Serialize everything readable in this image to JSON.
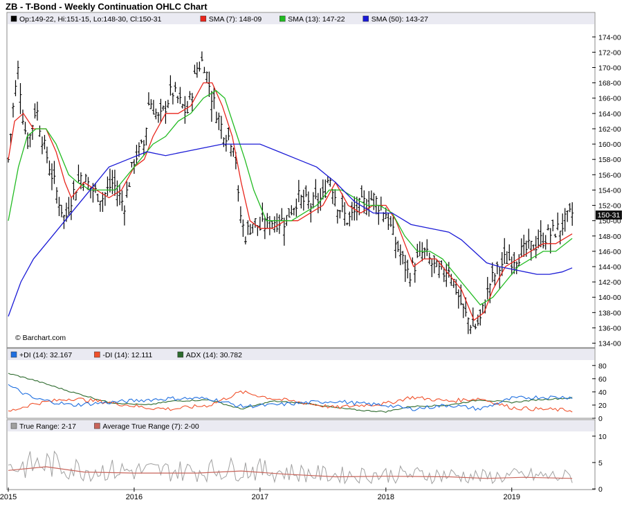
{
  "title": "ZB - T-Bond - Weekly Continuation OHLC Chart",
  "watermark": "© Barchart.com",
  "price_panel": {
    "legend": [
      {
        "key": "ohlc",
        "text": "Op:149-22, Hi:151-15, Lo:148-30, Cl:150-31",
        "color": "#000000"
      },
      {
        "key": "sma7",
        "text": "SMA (7): 148-09",
        "color": "#e8251c"
      },
      {
        "key": "sma13",
        "text": "SMA (13): 147-22",
        "color": "#22bb22"
      },
      {
        "key": "sma50",
        "text": "SMA (50): 143-27",
        "color": "#1a1ad6"
      }
    ],
    "y_ticks": [
      "134-00",
      "136-00",
      "138-00",
      "140-00",
      "142-00",
      "144-00",
      "146-00",
      "148-00",
      "150-00",
      "152-00",
      "154-00",
      "156-00",
      "158-00",
      "160-00",
      "162-00",
      "164-00",
      "166-00",
      "168-00",
      "170-00",
      "172-00",
      "174-00"
    ],
    "last_label": "150-31"
  },
  "dmi_panel": {
    "legend": [
      {
        "key": "pdi",
        "text": "+DI (14): 32.167",
        "color": "#1f6fe0"
      },
      {
        "key": "mdi",
        "text": "-DI (14): 12.111",
        "color": "#f0502a"
      },
      {
        "key": "adx",
        "text": "ADX (14): 30.782",
        "color": "#2d6a2d"
      }
    ],
    "y_ticks": [
      "0",
      "20",
      "40",
      "60",
      "80"
    ]
  },
  "tr_panel": {
    "legend": [
      {
        "key": "tr",
        "text": "True Range: 2-17",
        "color": "#a0a0a0"
      },
      {
        "key": "atr",
        "text": "Average True Range (7): 2-00",
        "color": "#c8645a"
      }
    ],
    "y_ticks": [
      "0",
      "5",
      "10"
    ]
  },
  "x_ticks": [
    "2015",
    "2016",
    "2017",
    "2018",
    "2019"
  ],
  "chart_data": {
    "type": "line",
    "title": "ZB - T-Bond - Weekly Continuation OHLC Chart",
    "xlabel": "",
    "ylabel": "",
    "ylim": [
      134,
      175
    ],
    "x_range": [
      "2015-01",
      "2019-07"
    ],
    "series": [
      {
        "name": "OHLC close",
        "points": [
          [
            2015.0,
            158
          ],
          [
            2015.04,
            165
          ],
          [
            2015.08,
            170
          ],
          [
            2015.12,
            163
          ],
          [
            2015.16,
            160
          ],
          [
            2015.22,
            165
          ],
          [
            2015.28,
            160
          ],
          [
            2015.33,
            157
          ],
          [
            2015.38,
            154
          ],
          [
            2015.45,
            150
          ],
          [
            2015.5,
            153
          ],
          [
            2015.58,
            156
          ],
          [
            2015.67,
            154
          ],
          [
            2015.75,
            153
          ],
          [
            2015.83,
            155
          ],
          [
            2015.92,
            152
          ],
          [
            2016.0,
            158
          ],
          [
            2016.08,
            160
          ],
          [
            2016.12,
            166
          ],
          [
            2016.2,
            163
          ],
          [
            2016.3,
            167
          ],
          [
            2016.42,
            164
          ],
          [
            2016.5,
            170
          ],
          [
            2016.55,
            171
          ],
          [
            2016.62,
            166
          ],
          [
            2016.7,
            162
          ],
          [
            2016.8,
            160
          ],
          [
            2016.83,
            152
          ],
          [
            2016.88,
            148
          ],
          [
            2016.95,
            150
          ],
          [
            2017.0,
            149
          ],
          [
            2017.1,
            150
          ],
          [
            2017.2,
            150
          ],
          [
            2017.3,
            153
          ],
          [
            2017.4,
            152
          ],
          [
            2017.5,
            153
          ],
          [
            2017.55,
            156
          ],
          [
            2017.62,
            152
          ],
          [
            2017.7,
            150
          ],
          [
            2017.8,
            152
          ],
          [
            2017.9,
            153
          ],
          [
            2018.0,
            151
          ],
          [
            2018.08,
            147
          ],
          [
            2018.18,
            143
          ],
          [
            2018.3,
            146
          ],
          [
            2018.38,
            144
          ],
          [
            2018.45,
            143
          ],
          [
            2018.5,
            144
          ],
          [
            2018.62,
            138
          ],
          [
            2018.7,
            136
          ],
          [
            2018.75,
            137
          ],
          [
            2018.83,
            142
          ],
          [
            2018.95,
            145
          ],
          [
            2019.0,
            145
          ],
          [
            2019.1,
            146
          ],
          [
            2019.2,
            147
          ],
          [
            2019.28,
            148
          ],
          [
            2019.38,
            149
          ],
          [
            2019.48,
            150.97
          ]
        ]
      },
      {
        "name": "SMA (7)",
        "points": [
          [
            2015.0,
            158
          ],
          [
            2015.05,
            163
          ],
          [
            2015.12,
            164
          ],
          [
            2015.2,
            162
          ],
          [
            2015.3,
            162
          ],
          [
            2015.38,
            159
          ],
          [
            2015.45,
            155
          ],
          [
            2015.5,
            153
          ],
          [
            2015.6,
            155
          ],
          [
            2015.7,
            154
          ],
          [
            2015.8,
            153
          ],
          [
            2015.9,
            154
          ],
          [
            2016.0,
            157
          ],
          [
            2016.08,
            158
          ],
          [
            2016.15,
            161
          ],
          [
            2016.25,
            164
          ],
          [
            2016.35,
            164
          ],
          [
            2016.45,
            165
          ],
          [
            2016.55,
            168
          ],
          [
            2016.62,
            168
          ],
          [
            2016.7,
            165
          ],
          [
            2016.78,
            161
          ],
          [
            2016.85,
            155
          ],
          [
            2016.92,
            150
          ],
          [
            2017.0,
            149
          ],
          [
            2017.1,
            149
          ],
          [
            2017.2,
            150
          ],
          [
            2017.3,
            150
          ],
          [
            2017.4,
            151
          ],
          [
            2017.5,
            152
          ],
          [
            2017.6,
            155
          ],
          [
            2017.7,
            152
          ],
          [
            2017.8,
            151
          ],
          [
            2017.9,
            152
          ],
          [
            2018.0,
            152
          ],
          [
            2018.08,
            150
          ],
          [
            2018.15,
            147
          ],
          [
            2018.22,
            144
          ],
          [
            2018.3,
            145
          ],
          [
            2018.4,
            145
          ],
          [
            2018.5,
            143
          ],
          [
            2018.6,
            141
          ],
          [
            2018.7,
            137
          ],
          [
            2018.78,
            138
          ],
          [
            2018.85,
            141
          ],
          [
            2018.95,
            144
          ],
          [
            2019.05,
            145
          ],
          [
            2019.15,
            146
          ],
          [
            2019.25,
            147
          ],
          [
            2019.35,
            147
          ],
          [
            2019.48,
            148.28
          ]
        ]
      },
      {
        "name": "SMA (13)",
        "points": [
          [
            2015.0,
            150
          ],
          [
            2015.08,
            157
          ],
          [
            2015.15,
            161
          ],
          [
            2015.22,
            162
          ],
          [
            2015.3,
            162
          ],
          [
            2015.38,
            160
          ],
          [
            2015.48,
            156
          ],
          [
            2015.55,
            155
          ],
          [
            2015.65,
            154
          ],
          [
            2015.75,
            154
          ],
          [
            2015.85,
            154
          ],
          [
            2015.95,
            156
          ],
          [
            2016.05,
            158
          ],
          [
            2016.15,
            160
          ],
          [
            2016.25,
            161
          ],
          [
            2016.35,
            163
          ],
          [
            2016.45,
            164
          ],
          [
            2016.55,
            166
          ],
          [
            2016.65,
            167
          ],
          [
            2016.72,
            166
          ],
          [
            2016.8,
            162
          ],
          [
            2016.88,
            158
          ],
          [
            2016.95,
            154
          ],
          [
            2017.05,
            150
          ],
          [
            2017.15,
            150
          ],
          [
            2017.25,
            150
          ],
          [
            2017.35,
            151
          ],
          [
            2017.45,
            152
          ],
          [
            2017.55,
            154
          ],
          [
            2017.65,
            154
          ],
          [
            2017.75,
            153
          ],
          [
            2017.85,
            152
          ],
          [
            2017.95,
            152
          ],
          [
            2018.05,
            151
          ],
          [
            2018.15,
            148
          ],
          [
            2018.25,
            146
          ],
          [
            2018.35,
            146
          ],
          [
            2018.45,
            145
          ],
          [
            2018.55,
            143
          ],
          [
            2018.65,
            141
          ],
          [
            2018.75,
            139
          ],
          [
            2018.85,
            140
          ],
          [
            2018.95,
            142
          ],
          [
            2019.05,
            144
          ],
          [
            2019.15,
            145
          ],
          [
            2019.25,
            146
          ],
          [
            2019.35,
            146
          ],
          [
            2019.48,
            147.69
          ]
        ]
      },
      {
        "name": "SMA (50)",
        "points": [
          [
            2015.0,
            137.5
          ],
          [
            2015.1,
            142
          ],
          [
            2015.2,
            145
          ],
          [
            2015.35,
            148
          ],
          [
            2015.5,
            151
          ],
          [
            2015.65,
            154
          ],
          [
            2015.8,
            157
          ],
          [
            2015.95,
            158
          ],
          [
            2016.1,
            159
          ],
          [
            2016.25,
            158.5
          ],
          [
            2016.4,
            159
          ],
          [
            2016.55,
            159.5
          ],
          [
            2016.7,
            160
          ],
          [
            2016.85,
            160
          ],
          [
            2017.0,
            160
          ],
          [
            2017.15,
            159
          ],
          [
            2017.3,
            158
          ],
          [
            2017.45,
            157
          ],
          [
            2017.6,
            155
          ],
          [
            2017.75,
            152.5
          ],
          [
            2017.9,
            151
          ],
          [
            2018.05,
            151
          ],
          [
            2018.2,
            149.5
          ],
          [
            2018.35,
            149
          ],
          [
            2018.5,
            148.5
          ],
          [
            2018.6,
            147.5
          ],
          [
            2018.7,
            146
          ],
          [
            2018.8,
            144.5
          ],
          [
            2018.9,
            144
          ],
          [
            2019.05,
            143.5
          ],
          [
            2019.2,
            143
          ],
          [
            2019.3,
            143
          ],
          [
            2019.4,
            143.3
          ],
          [
            2019.48,
            143.84
          ]
        ]
      }
    ]
  }
}
